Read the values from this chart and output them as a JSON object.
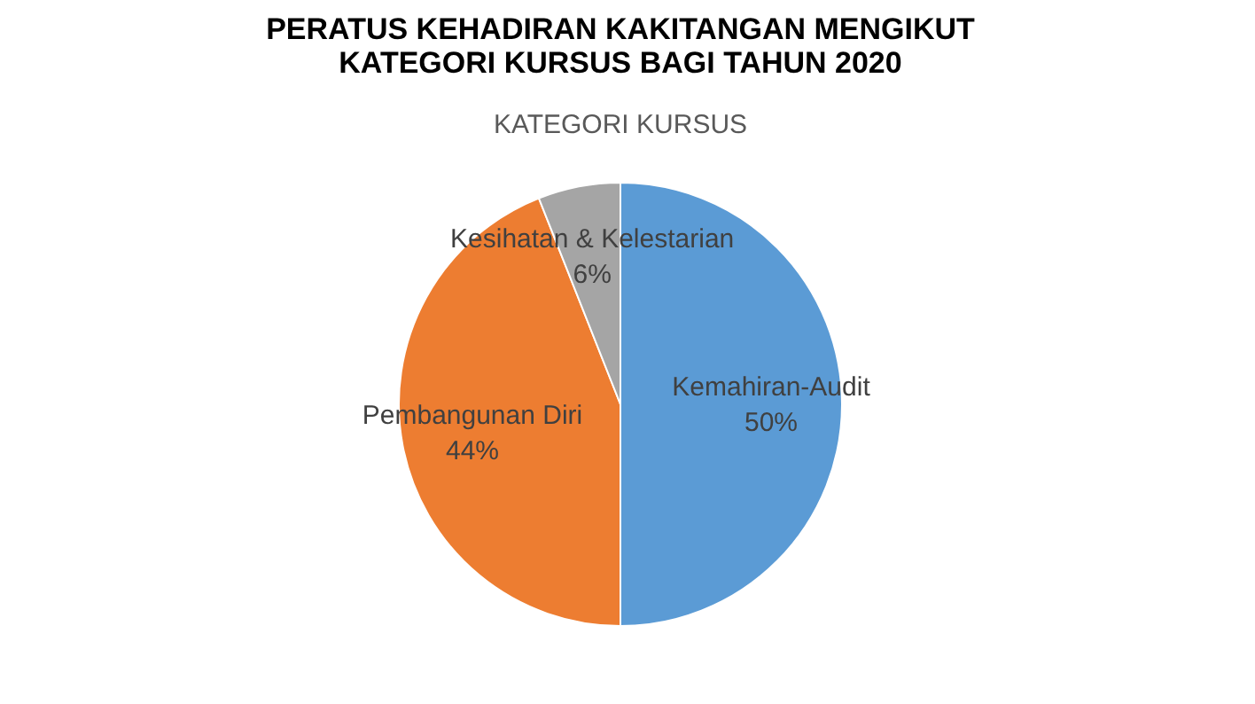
{
  "chart_data": {
    "type": "pie",
    "title": "PERATUS KEHADIRAN KAKITANGAN MENGIKUT\nKATEGORI KURSUS BAGI TAHUN 2020",
    "subtitle": "KATEGORI KURSUS",
    "categories": [
      "Kemahiran-Audit",
      "Pembangunan Diri",
      "Kesihatan & Kelestarian"
    ],
    "values": [
      50,
      44,
      6
    ],
    "colors": [
      "#5b9bd5",
      "#ed7d31",
      "#a5a5a5"
    ],
    "value_labels": [
      "50%",
      "44%",
      "6%"
    ],
    "legend": false
  }
}
